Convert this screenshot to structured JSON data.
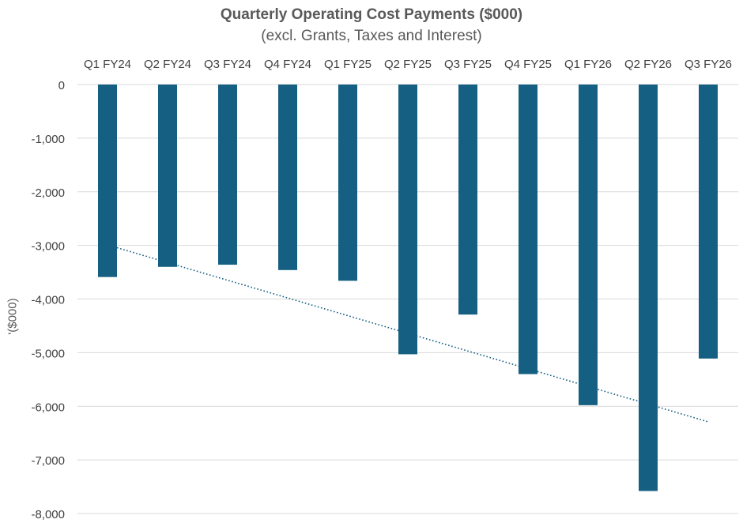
{
  "chart_data": {
    "type": "bar",
    "title": "Quarterly Operating Cost Payments ($000)",
    "subtitle": "(excl. Grants, Taxes and Interest)",
    "xlabel": "",
    "ylabel": "'($000)",
    "categories": [
      "Q1 FY24",
      "Q2 FY24",
      "Q3 FY24",
      "Q4 FY24",
      "Q1 FY25",
      "Q2 FY25",
      "Q3 FY25",
      "Q4 FY25",
      "Q1 FY26",
      "Q2 FY26",
      "Q3 FY26"
    ],
    "values": [
      -3590,
      -3400,
      -3360,
      -3460,
      -3660,
      -5030,
      -4290,
      -5400,
      -5980,
      -7580,
      -5110
    ],
    "ylim": [
      -8000,
      0
    ],
    "yticks": [
      0,
      -1000,
      -2000,
      -3000,
      -4000,
      -5000,
      -6000,
      -7000,
      -8000
    ],
    "ytick_labels": [
      "0",
      "-1,000",
      "-2,000",
      "-3,000",
      "-4,000",
      "-5,000",
      "-6,000",
      "-7,000",
      "-8,000"
    ],
    "x_axis_position": "top",
    "grid": true,
    "trendline": {
      "type": "linear",
      "style": "dotted",
      "start": -2990,
      "end": -6290
    },
    "colors": {
      "bar": "#155f82",
      "trendline": "#155f82",
      "grid": "#d9d9d9",
      "text": "#404040"
    }
  }
}
